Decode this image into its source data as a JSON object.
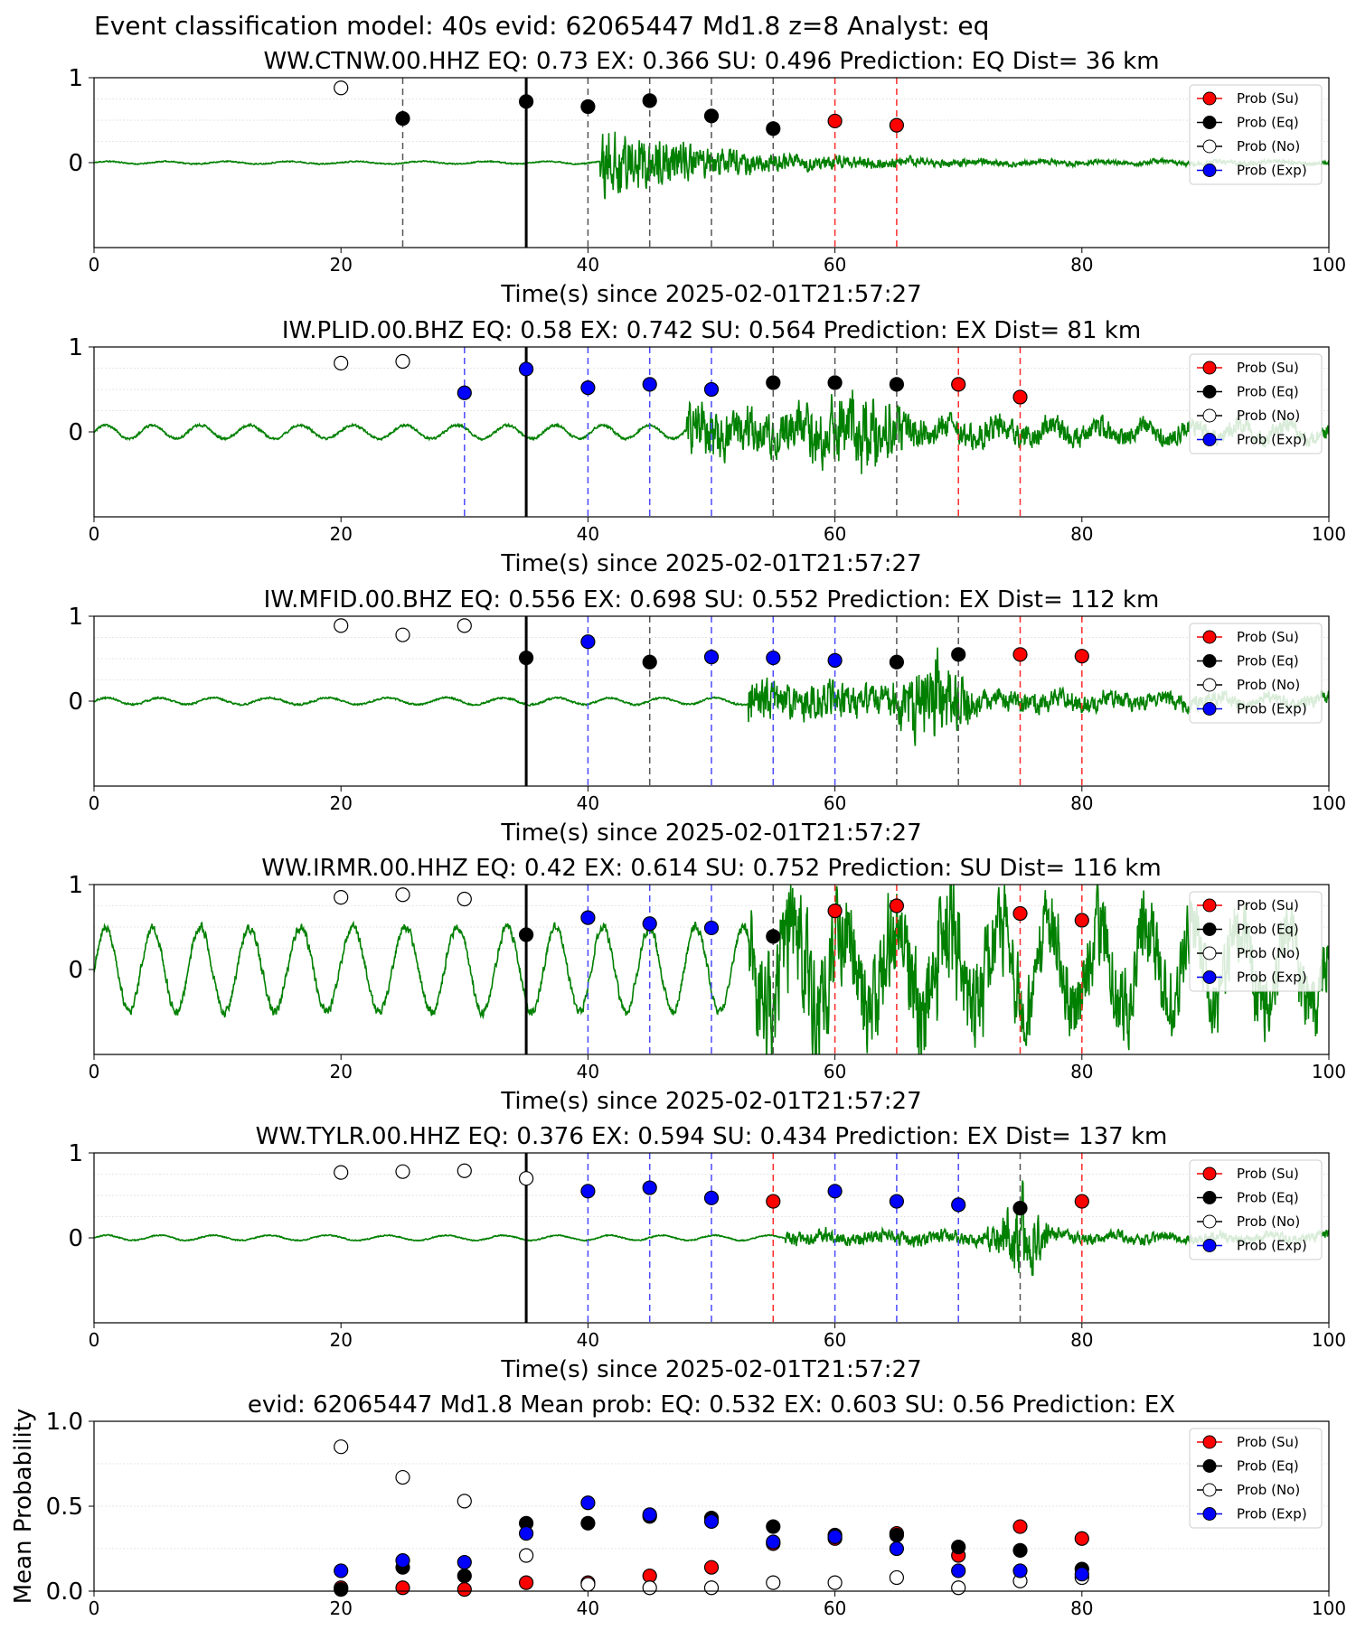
{
  "figure": {
    "suptitle": "Event classification model: 40s evid: 62065447 Md1.8 z=8 Analyst: eq"
  },
  "legend": {
    "entries": [
      {
        "label": "Prob (Su)",
        "color": "#ff0000",
        "marker": "filled"
      },
      {
        "label": "Prob (Eq)",
        "color": "#000000",
        "marker": "filled"
      },
      {
        "label": "Prob (No)",
        "color": "#ffffff",
        "marker": "hollow"
      },
      {
        "label": "Prob (Exp)",
        "color": "#0000ff",
        "marker": "filled"
      }
    ]
  },
  "colors": {
    "waveform": "#008000",
    "su": "#ff0000",
    "eq": "#000000",
    "no": "#ffffff",
    "exp": "#0000ff",
    "origin_line": "#000000"
  },
  "chart_data": [
    {
      "type": "line",
      "title": "WW.CTNW.00.HHZ   EQ: 0.73  EX: 0.366  SU: 0.496   Prediction: EQ    Dist= 36 km",
      "xlabel": "Time(s) since 2025-02-01T21:57:27",
      "ylabel": "",
      "xlim": [
        0,
        100
      ],
      "ylim": [
        -1,
        1
      ],
      "xticks": [
        0,
        20,
        40,
        60,
        80,
        100
      ],
      "yticks": [
        0,
        1
      ],
      "origin_time": 35,
      "waveform": {
        "bg_amp": 0.015,
        "bg_noise": 0.01,
        "bg_period": 5,
        "onset": 41,
        "peak_amp": 0.55,
        "decay": 10,
        "tail_amp": 0.03,
        "seed": 11
      },
      "points": [
        {
          "x": 20,
          "y": 0.88,
          "cls": "no"
        },
        {
          "x": 25,
          "y": 0.52,
          "cls": "eq"
        },
        {
          "x": 35,
          "y": 0.72,
          "cls": "eq"
        },
        {
          "x": 40,
          "y": 0.66,
          "cls": "eq"
        },
        {
          "x": 45,
          "y": 0.73,
          "cls": "eq"
        },
        {
          "x": 50,
          "y": 0.55,
          "cls": "eq"
        },
        {
          "x": 55,
          "y": 0.4,
          "cls": "eq"
        },
        {
          "x": 60,
          "y": 0.49,
          "cls": "su"
        },
        {
          "x": 65,
          "y": 0.44,
          "cls": "su"
        }
      ]
    },
    {
      "type": "line",
      "title": "IW.PLID.00.BHZ   EQ: 0.58  EX: 0.742  SU: 0.564   Prediction: EX    Dist= 81 km",
      "xlabel": "Time(s) since 2025-02-01T21:57:27",
      "ylabel": "",
      "xlim": [
        0,
        100
      ],
      "ylim": [
        -1,
        1
      ],
      "xticks": [
        0,
        20,
        40,
        60,
        80,
        100
      ],
      "yticks": [
        0,
        1
      ],
      "origin_time": 35,
      "waveform": {
        "bg_amp": 0.08,
        "bg_noise": 0.02,
        "bg_period": 4,
        "onset": 48,
        "peak_amp": 0.35,
        "decay": 25,
        "tail_amp": 0.08,
        "burst_center": 62,
        "burst_amp": 0.55,
        "burst_width": 4,
        "seed": 23
      },
      "points": [
        {
          "x": 20,
          "y": 0.81,
          "cls": "no"
        },
        {
          "x": 25,
          "y": 0.83,
          "cls": "no"
        },
        {
          "x": 30,
          "y": 0.46,
          "cls": "exp"
        },
        {
          "x": 35,
          "y": 0.74,
          "cls": "exp"
        },
        {
          "x": 40,
          "y": 0.52,
          "cls": "exp"
        },
        {
          "x": 45,
          "y": 0.56,
          "cls": "exp"
        },
        {
          "x": 50,
          "y": 0.5,
          "cls": "exp"
        },
        {
          "x": 55,
          "y": 0.58,
          "cls": "eq"
        },
        {
          "x": 60,
          "y": 0.58,
          "cls": "eq"
        },
        {
          "x": 65,
          "y": 0.56,
          "cls": "eq"
        },
        {
          "x": 70,
          "y": 0.56,
          "cls": "su"
        },
        {
          "x": 75,
          "y": 0.41,
          "cls": "su"
        }
      ]
    },
    {
      "type": "line",
      "title": "IW.MFID.00.BHZ   EQ: 0.556  EX: 0.698  SU: 0.552   Prediction: EX    Dist= 112 km",
      "xlabel": "Time(s) since 2025-02-01T21:57:27",
      "ylabel": "",
      "xlim": [
        0,
        100
      ],
      "ylim": [
        -1,
        1
      ],
      "xticks": [
        0,
        20,
        40,
        60,
        80,
        100
      ],
      "yticks": [
        0,
        1
      ],
      "origin_time": 35,
      "waveform": {
        "bg_amp": 0.04,
        "bg_noise": 0.015,
        "bg_period": 4.5,
        "onset": 53,
        "peak_amp": 0.3,
        "decay": 25,
        "tail_amp": 0.06,
        "burst_center": 68,
        "burst_amp": 0.6,
        "burst_width": 3,
        "seed": 37
      },
      "points": [
        {
          "x": 20,
          "y": 0.89,
          "cls": "no"
        },
        {
          "x": 25,
          "y": 0.78,
          "cls": "no"
        },
        {
          "x": 30,
          "y": 0.89,
          "cls": "no"
        },
        {
          "x": 35,
          "y": 0.51,
          "cls": "eq"
        },
        {
          "x": 40,
          "y": 0.7,
          "cls": "exp"
        },
        {
          "x": 45,
          "y": 0.46,
          "cls": "eq"
        },
        {
          "x": 50,
          "y": 0.52,
          "cls": "exp"
        },
        {
          "x": 55,
          "y": 0.51,
          "cls": "exp"
        },
        {
          "x": 60,
          "y": 0.48,
          "cls": "exp"
        },
        {
          "x": 65,
          "y": 0.46,
          "cls": "eq"
        },
        {
          "x": 70,
          "y": 0.55,
          "cls": "eq"
        },
        {
          "x": 75,
          "y": 0.55,
          "cls": "su"
        },
        {
          "x": 80,
          "y": 0.53,
          "cls": "su"
        }
      ]
    },
    {
      "type": "line",
      "title": "WW.IRMR.00.HHZ   EQ: 0.42  EX: 0.614  SU: 0.752   Prediction: SU    Dist= 116 km",
      "xlabel": "Time(s) since 2025-02-01T21:57:27",
      "ylabel": "",
      "xlim": [
        0,
        100
      ],
      "ylim": [
        -1,
        1
      ],
      "xticks": [
        0,
        20,
        40,
        60,
        80,
        100
      ],
      "yticks": [
        0,
        1
      ],
      "origin_time": 35,
      "waveform": {
        "bg_amp": 0.5,
        "bg_noise": 0.08,
        "bg_period": 4,
        "onset": 53,
        "peak_amp": 0.6,
        "decay": 40,
        "tail_amp": 0.35,
        "burst_center": 69,
        "burst_amp": 0.5,
        "burst_width": 4,
        "seed": 51
      },
      "points": [
        {
          "x": 20,
          "y": 0.85,
          "cls": "no"
        },
        {
          "x": 25,
          "y": 0.88,
          "cls": "no"
        },
        {
          "x": 30,
          "y": 0.83,
          "cls": "no"
        },
        {
          "x": 35,
          "y": 0.41,
          "cls": "eq"
        },
        {
          "x": 40,
          "y": 0.61,
          "cls": "exp"
        },
        {
          "x": 45,
          "y": 0.54,
          "cls": "exp"
        },
        {
          "x": 50,
          "y": 0.49,
          "cls": "exp"
        },
        {
          "x": 55,
          "y": 0.39,
          "cls": "eq"
        },
        {
          "x": 60,
          "y": 0.69,
          "cls": "su"
        },
        {
          "x": 65,
          "y": 0.75,
          "cls": "su"
        },
        {
          "x": 75,
          "y": 0.66,
          "cls": "su"
        },
        {
          "x": 80,
          "y": 0.58,
          "cls": "su"
        }
      ]
    },
    {
      "type": "line",
      "title": "WW.TYLR.00.HHZ   EQ: 0.376  EX: 0.594  SU: 0.434   Prediction: EX    Dist= 137 km",
      "xlabel": "Time(s) since 2025-02-01T21:57:27",
      "ylabel": "",
      "xlim": [
        0,
        100
      ],
      "ylim": [
        -1,
        1
      ],
      "xticks": [
        0,
        20,
        40,
        60,
        80,
        100
      ],
      "yticks": [
        0,
        1
      ],
      "origin_time": 35,
      "waveform": {
        "bg_amp": 0.03,
        "bg_noise": 0.01,
        "bg_period": 4.5,
        "onset": 56,
        "peak_amp": 0.08,
        "decay": 40,
        "tail_amp": 0.05,
        "burst_center": 75,
        "burst_amp": 0.7,
        "burst_width": 2,
        "seed": 67
      },
      "points": [
        {
          "x": 20,
          "y": 0.77,
          "cls": "no"
        },
        {
          "x": 25,
          "y": 0.78,
          "cls": "no"
        },
        {
          "x": 30,
          "y": 0.79,
          "cls": "no"
        },
        {
          "x": 35,
          "y": 0.7,
          "cls": "no"
        },
        {
          "x": 40,
          "y": 0.55,
          "cls": "exp"
        },
        {
          "x": 45,
          "y": 0.59,
          "cls": "exp"
        },
        {
          "x": 50,
          "y": 0.47,
          "cls": "exp"
        },
        {
          "x": 55,
          "y": 0.43,
          "cls": "su"
        },
        {
          "x": 60,
          "y": 0.55,
          "cls": "exp"
        },
        {
          "x": 65,
          "y": 0.43,
          "cls": "exp"
        },
        {
          "x": 70,
          "y": 0.39,
          "cls": "exp"
        },
        {
          "x": 75,
          "y": 0.35,
          "cls": "eq"
        },
        {
          "x": 80,
          "y": 0.43,
          "cls": "su"
        }
      ]
    },
    {
      "type": "scatter",
      "title": "evid: 62065447   Md1.8   Mean prob:   EQ: 0.532   EX: 0.603   SU: 0.56   Prediction: EX",
      "xlabel": "",
      "ylabel": "Mean Probability",
      "xlim": [
        0,
        100
      ],
      "ylim": [
        0,
        1
      ],
      "xticks": [
        0,
        20,
        40,
        60,
        80,
        100
      ],
      "yticks": [
        0,
        0.5,
        1
      ],
      "ytick_labels": [
        "0.0",
        "0.5",
        "1.0"
      ],
      "x": [
        20,
        25,
        30,
        35,
        40,
        45,
        50,
        55,
        60,
        65,
        70,
        75,
        80
      ],
      "series": [
        {
          "name": "Prob (Su)",
          "cls": "su",
          "values": [
            0.02,
            0.02,
            0.01,
            0.05,
            0.05,
            0.09,
            0.14,
            0.28,
            0.31,
            0.34,
            0.21,
            0.38,
            0.31
          ]
        },
        {
          "name": "Prob (Eq)",
          "cls": "eq",
          "values": [
            0.01,
            0.14,
            0.09,
            0.4,
            0.4,
            0.44,
            0.43,
            0.38,
            0.33,
            0.33,
            0.26,
            0.24,
            0.13
          ]
        },
        {
          "name": "Prob (No)",
          "cls": "no",
          "values": [
            0.85,
            0.67,
            0.53,
            0.21,
            0.04,
            0.02,
            0.02,
            0.05,
            0.05,
            0.08,
            0.02,
            0.06,
            0.08
          ]
        },
        {
          "name": "Prob (Exp)",
          "cls": "exp",
          "values": [
            0.12,
            0.18,
            0.17,
            0.34,
            0.52,
            0.45,
            0.41,
            0.29,
            0.32,
            0.25,
            0.12,
            0.12,
            0.1
          ]
        }
      ]
    }
  ]
}
